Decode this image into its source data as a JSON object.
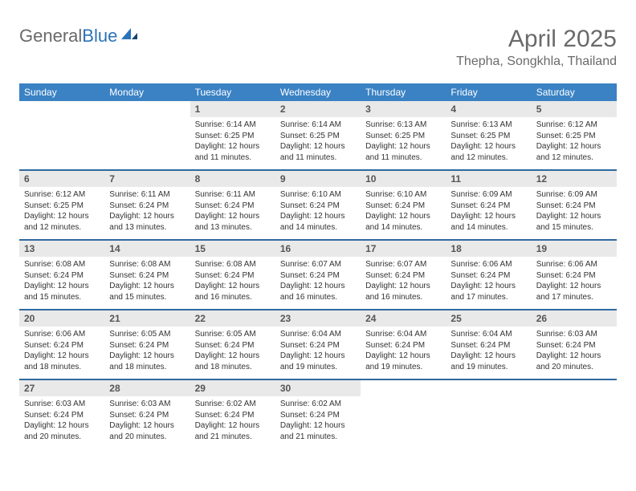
{
  "logo": {
    "text1": "General",
    "text2": "Blue"
  },
  "title": "April 2025",
  "location": "Thepha, Songkhla, Thailand",
  "weekdays": [
    "Sunday",
    "Monday",
    "Tuesday",
    "Wednesday",
    "Thursday",
    "Friday",
    "Saturday"
  ],
  "colors": {
    "header_bg": "#3a82c4",
    "date_bg": "#e9e9e9",
    "rule": "#2f6aa0",
    "text_gray": "#6a6a6a"
  },
  "weeks": [
    [
      null,
      null,
      {
        "d": "1",
        "sr": "6:14 AM",
        "ss": "6:25 PM",
        "dl": "12 hours and 11 minutes."
      },
      {
        "d": "2",
        "sr": "6:14 AM",
        "ss": "6:25 PM",
        "dl": "12 hours and 11 minutes."
      },
      {
        "d": "3",
        "sr": "6:13 AM",
        "ss": "6:25 PM",
        "dl": "12 hours and 11 minutes."
      },
      {
        "d": "4",
        "sr": "6:13 AM",
        "ss": "6:25 PM",
        "dl": "12 hours and 12 minutes."
      },
      {
        "d": "5",
        "sr": "6:12 AM",
        "ss": "6:25 PM",
        "dl": "12 hours and 12 minutes."
      }
    ],
    [
      {
        "d": "6",
        "sr": "6:12 AM",
        "ss": "6:25 PM",
        "dl": "12 hours and 12 minutes."
      },
      {
        "d": "7",
        "sr": "6:11 AM",
        "ss": "6:24 PM",
        "dl": "12 hours and 13 minutes."
      },
      {
        "d": "8",
        "sr": "6:11 AM",
        "ss": "6:24 PM",
        "dl": "12 hours and 13 minutes."
      },
      {
        "d": "9",
        "sr": "6:10 AM",
        "ss": "6:24 PM",
        "dl": "12 hours and 14 minutes."
      },
      {
        "d": "10",
        "sr": "6:10 AM",
        "ss": "6:24 PM",
        "dl": "12 hours and 14 minutes."
      },
      {
        "d": "11",
        "sr": "6:09 AM",
        "ss": "6:24 PM",
        "dl": "12 hours and 14 minutes."
      },
      {
        "d": "12",
        "sr": "6:09 AM",
        "ss": "6:24 PM",
        "dl": "12 hours and 15 minutes."
      }
    ],
    [
      {
        "d": "13",
        "sr": "6:08 AM",
        "ss": "6:24 PM",
        "dl": "12 hours and 15 minutes."
      },
      {
        "d": "14",
        "sr": "6:08 AM",
        "ss": "6:24 PM",
        "dl": "12 hours and 15 minutes."
      },
      {
        "d": "15",
        "sr": "6:08 AM",
        "ss": "6:24 PM",
        "dl": "12 hours and 16 minutes."
      },
      {
        "d": "16",
        "sr": "6:07 AM",
        "ss": "6:24 PM",
        "dl": "12 hours and 16 minutes."
      },
      {
        "d": "17",
        "sr": "6:07 AM",
        "ss": "6:24 PM",
        "dl": "12 hours and 16 minutes."
      },
      {
        "d": "18",
        "sr": "6:06 AM",
        "ss": "6:24 PM",
        "dl": "12 hours and 17 minutes."
      },
      {
        "d": "19",
        "sr": "6:06 AM",
        "ss": "6:24 PM",
        "dl": "12 hours and 17 minutes."
      }
    ],
    [
      {
        "d": "20",
        "sr": "6:06 AM",
        "ss": "6:24 PM",
        "dl": "12 hours and 18 minutes."
      },
      {
        "d": "21",
        "sr": "6:05 AM",
        "ss": "6:24 PM",
        "dl": "12 hours and 18 minutes."
      },
      {
        "d": "22",
        "sr": "6:05 AM",
        "ss": "6:24 PM",
        "dl": "12 hours and 18 minutes."
      },
      {
        "d": "23",
        "sr": "6:04 AM",
        "ss": "6:24 PM",
        "dl": "12 hours and 19 minutes."
      },
      {
        "d": "24",
        "sr": "6:04 AM",
        "ss": "6:24 PM",
        "dl": "12 hours and 19 minutes."
      },
      {
        "d": "25",
        "sr": "6:04 AM",
        "ss": "6:24 PM",
        "dl": "12 hours and 19 minutes."
      },
      {
        "d": "26",
        "sr": "6:03 AM",
        "ss": "6:24 PM",
        "dl": "12 hours and 20 minutes."
      }
    ],
    [
      {
        "d": "27",
        "sr": "6:03 AM",
        "ss": "6:24 PM",
        "dl": "12 hours and 20 minutes."
      },
      {
        "d": "28",
        "sr": "6:03 AM",
        "ss": "6:24 PM",
        "dl": "12 hours and 20 minutes."
      },
      {
        "d": "29",
        "sr": "6:02 AM",
        "ss": "6:24 PM",
        "dl": "12 hours and 21 minutes."
      },
      {
        "d": "30",
        "sr": "6:02 AM",
        "ss": "6:24 PM",
        "dl": "12 hours and 21 minutes."
      },
      null,
      null,
      null
    ]
  ],
  "labels": {
    "sunrise": "Sunrise:",
    "sunset": "Sunset:",
    "daylight": "Daylight:"
  }
}
